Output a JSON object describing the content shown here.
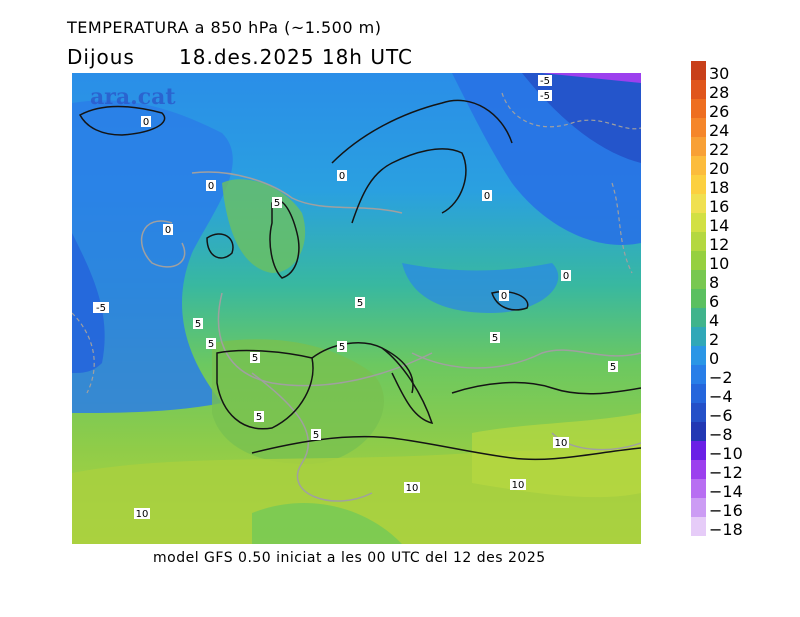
{
  "title": "TEMPERATURA a 850 hPa (~1.500 m)",
  "subtitle_day": "Dijous",
  "subtitle_date": "18.des.2025 18h UTC",
  "footer": "model GFS 0.50 iniciat a les 00 UTC del 12 des 2025",
  "watermark": "ara.cat",
  "legend": {
    "labels": [
      "30",
      "28",
      "26",
      "24",
      "22",
      "20",
      "18",
      "16",
      "14",
      "12",
      "10",
      "8",
      "6",
      "4",
      "2",
      "0",
      "−2",
      "−4",
      "−6",
      "−8",
      "−10",
      "−12",
      "−14",
      "−16",
      "−18"
    ],
    "colors": [
      "#c8401a",
      "#e0561c",
      "#ee6e20",
      "#f5862a",
      "#f8a035",
      "#fcbc3c",
      "#fcd040",
      "#f0e050",
      "#d2e043",
      "#b4d840",
      "#96d040",
      "#78c850",
      "#5ac060",
      "#40b48c",
      "#30a8b8",
      "#2a96e6",
      "#287ee8",
      "#2566dc",
      "#2450c8",
      "#2238b4",
      "#6a20e6",
      "#9c40ee",
      "#b86ef2",
      "#cc9cf4",
      "#e6ccf8"
    ]
  },
  "isoline_labels": [
    "-5",
    "-5",
    "0",
    "0",
    "0",
    "0",
    "0",
    "0",
    "-5",
    "0",
    "5",
    "5",
    "5",
    "5",
    "5",
    "5",
    "5",
    "5",
    "5",
    "5",
    "10",
    "10",
    "10",
    "10"
  ],
  "colors": {
    "land_outline": "#141414",
    "isoline": "#a0a0a0",
    "watermark": "#2b55c8"
  }
}
